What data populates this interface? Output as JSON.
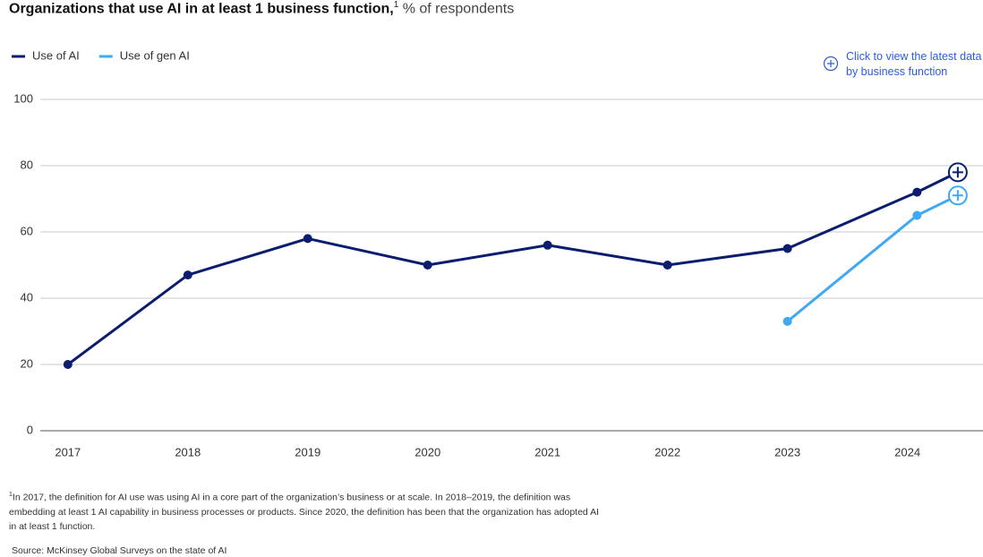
{
  "chart_data": {
    "type": "line",
    "title": "Organizations that use AI in at least 1 business function,",
    "title_footnote_marker": "1",
    "subtitle": "% of respondents",
    "x": [
      2017,
      2018,
      2019,
      2020,
      2021,
      2022,
      2023,
      2024.08,
      2024.42
    ],
    "series": [
      {
        "name": "Use of AI",
        "color": "#0b1d6e",
        "values": [
          20,
          47,
          58,
          50,
          56,
          50,
          55,
          72,
          78
        ]
      },
      {
        "name": "Use of gen AI",
        "color": "#3fa9f5",
        "values": [
          null,
          null,
          null,
          null,
          null,
          null,
          33,
          65,
          71
        ]
      }
    ],
    "xlim": [
      2016.77,
      2024.63
    ],
    "xticks": [
      2017,
      2018,
      2019,
      2020,
      2021,
      2022,
      2023,
      2024
    ],
    "ylim": [
      0,
      100
    ],
    "yticks": [
      0,
      20,
      40,
      60,
      80,
      100
    ],
    "grid": true,
    "legend": "top-left",
    "link_text": "Click to view the latest data by business function",
    "footnote_marker": "1",
    "footnote": "In 2017, the definition for AI use was using AI in a core part of the organization’s business or at scale. In 2018–2019, the definition was embedding at least 1 AI capability in business processes or products. Since 2020, the definition has been that the organization has adopted AI in at least 1 function.",
    "source": "Source: McKinsey Global Surveys on the state of AI"
  }
}
